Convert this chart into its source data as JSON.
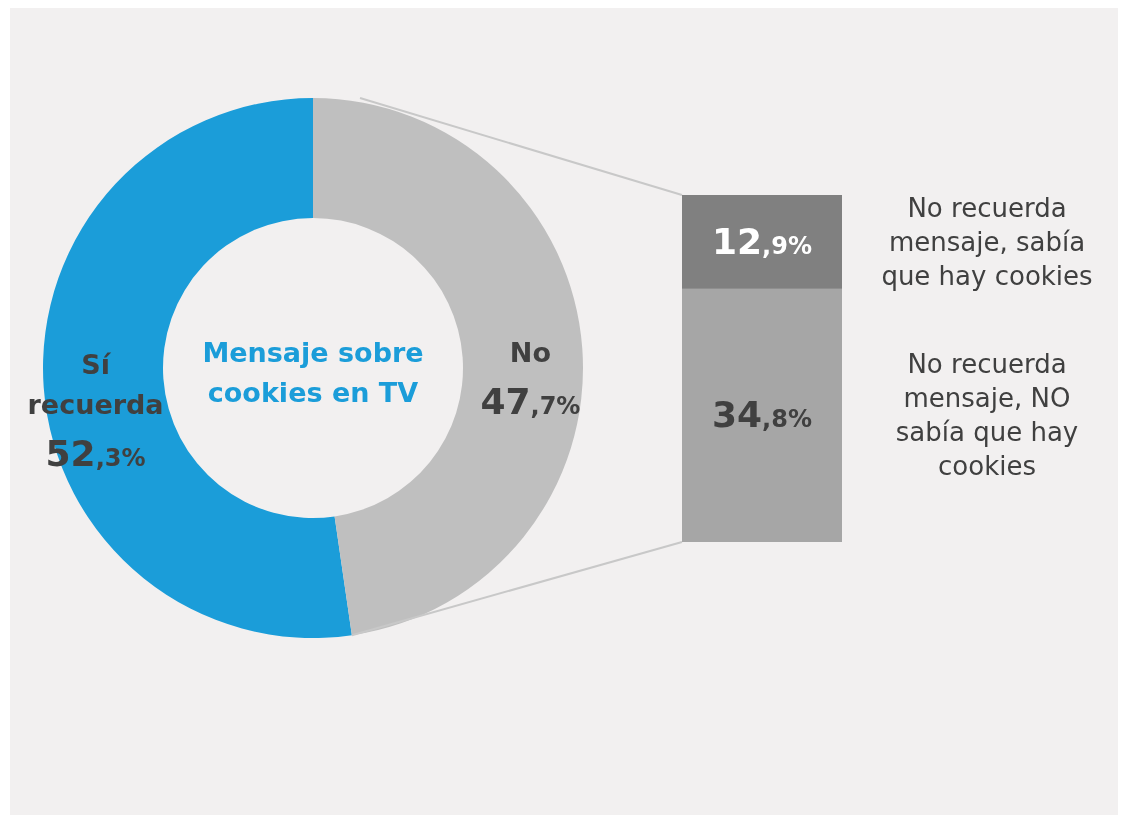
{
  "chart_data": [
    {
      "type": "donut",
      "title": "Mensaje sobre cookies en TV",
      "categories": [
        "Sí recuerda",
        "No"
      ],
      "values": [
        52.3,
        47.7
      ],
      "colors": [
        "#1b9dd9",
        "#bfbfbf"
      ],
      "value_labels": [
        "52,3%",
        "47,7%"
      ]
    },
    {
      "type": "bar",
      "stacked": true,
      "categories": [
        null
      ],
      "series": [
        {
          "name": "No recuerda mensaje, NO sabía que hay cookies",
          "color": "#a6a6a6",
          "values": [
            34.8
          ],
          "value_labels": [
            "34,8%"
          ]
        },
        {
          "name": "No recuerda mensaje, sabía que hay cookies",
          "color": "#808080",
          "values": [
            12.9
          ],
          "value_labels": [
            "12,9%"
          ]
        }
      ]
    }
  ]
}
